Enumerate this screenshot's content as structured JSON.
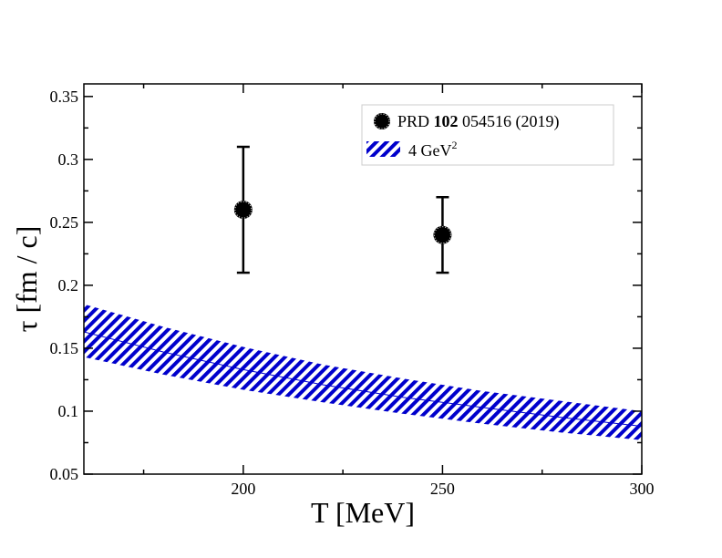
{
  "chart_data": {
    "type": "scatter",
    "title": "",
    "xlabel": "T [MeV]",
    "ylabel": "τ [fm / c]",
    "xlim": [
      160,
      300
    ],
    "ylim": [
      0.05,
      0.36
    ],
    "x_major_ticks": [
      200,
      250,
      300
    ],
    "x_major_tick_labels": [
      "200",
      "250",
      "300"
    ],
    "x_minor_ticks": [
      175,
      225,
      275
    ],
    "y_major_ticks": [
      0.05,
      0.1,
      0.15,
      0.2,
      0.25,
      0.3,
      0.35
    ],
    "y_major_tick_labels": [
      "0.05",
      "0.1",
      "0.15",
      "0.2",
      "0.25",
      "0.3",
      "0.35"
    ],
    "y_minor_ticks": [
      0.075,
      0.125,
      0.175,
      0.225,
      0.275,
      0.325
    ],
    "series": [
      {
        "name": "PRD 102 054516 (2019)",
        "kind": "points-with-errors",
        "color": "#000000",
        "points": [
          {
            "x": 200,
            "y": 0.26,
            "ylow": 0.21,
            "yhigh": 0.31
          },
          {
            "x": 250,
            "y": 0.24,
            "ylow": 0.21,
            "yhigh": 0.27
          }
        ]
      },
      {
        "name": "4 GeV^2",
        "kind": "band",
        "color": "#0000cc",
        "x": [
          160,
          180,
          200,
          220,
          240,
          260,
          280,
          300
        ],
        "center": [
          0.163,
          0.147,
          0.133,
          0.121,
          0.111,
          0.103,
          0.095,
          0.088
        ],
        "lower": [
          0.143,
          0.129,
          0.117,
          0.107,
          0.098,
          0.09,
          0.083,
          0.077
        ],
        "upper": [
          0.185,
          0.167,
          0.151,
          0.137,
          0.126,
          0.116,
          0.108,
          0.1
        ]
      }
    ],
    "legend": {
      "position": "top-right",
      "entries": [
        {
          "prefix": "PRD ",
          "bold": "102",
          "suffix": " 054516 (2019)"
        },
        {
          "base": "4 GeV",
          "sup": "2"
        }
      ]
    }
  }
}
